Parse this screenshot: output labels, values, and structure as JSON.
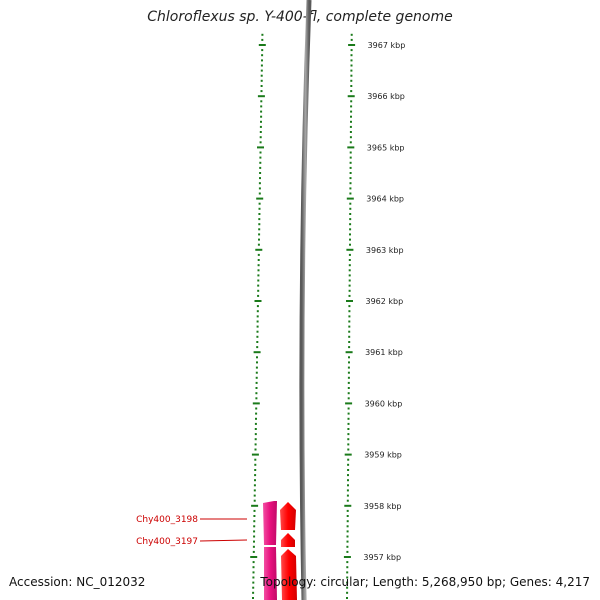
{
  "title": "Chloroflexus sp. Y-400-fl, complete genome",
  "footer": {
    "accession": "Accession: NC_012032",
    "topology": "Topology: circular; Length: 5,268,950 bp; Genes: 4,217"
  },
  "ruler": {
    "unit": "kbp",
    "labels": [
      "3967 kbp",
      "3966 kbp",
      "3965 kbp",
      "3964 kbp",
      "3963 kbp",
      "3962 kbp",
      "3961 kbp",
      "3960 kbp",
      "3959 kbp",
      "3958 kbp",
      "3957 kbp"
    ]
  },
  "genes": [
    {
      "name": "Chy400_3198",
      "color": "#e8107e",
      "strand": "plus"
    },
    {
      "name": "Chy400_3197",
      "color": "#e8107e",
      "strand": "plus"
    },
    {
      "name": "",
      "color": "#ff0000",
      "strand": "plus"
    },
    {
      "name": "",
      "color": "#ff0000",
      "strand": "plus"
    }
  ],
  "colors": {
    "tick": "#1a7a1a",
    "backbone": "#808080",
    "gene_label": "#cc0000"
  }
}
